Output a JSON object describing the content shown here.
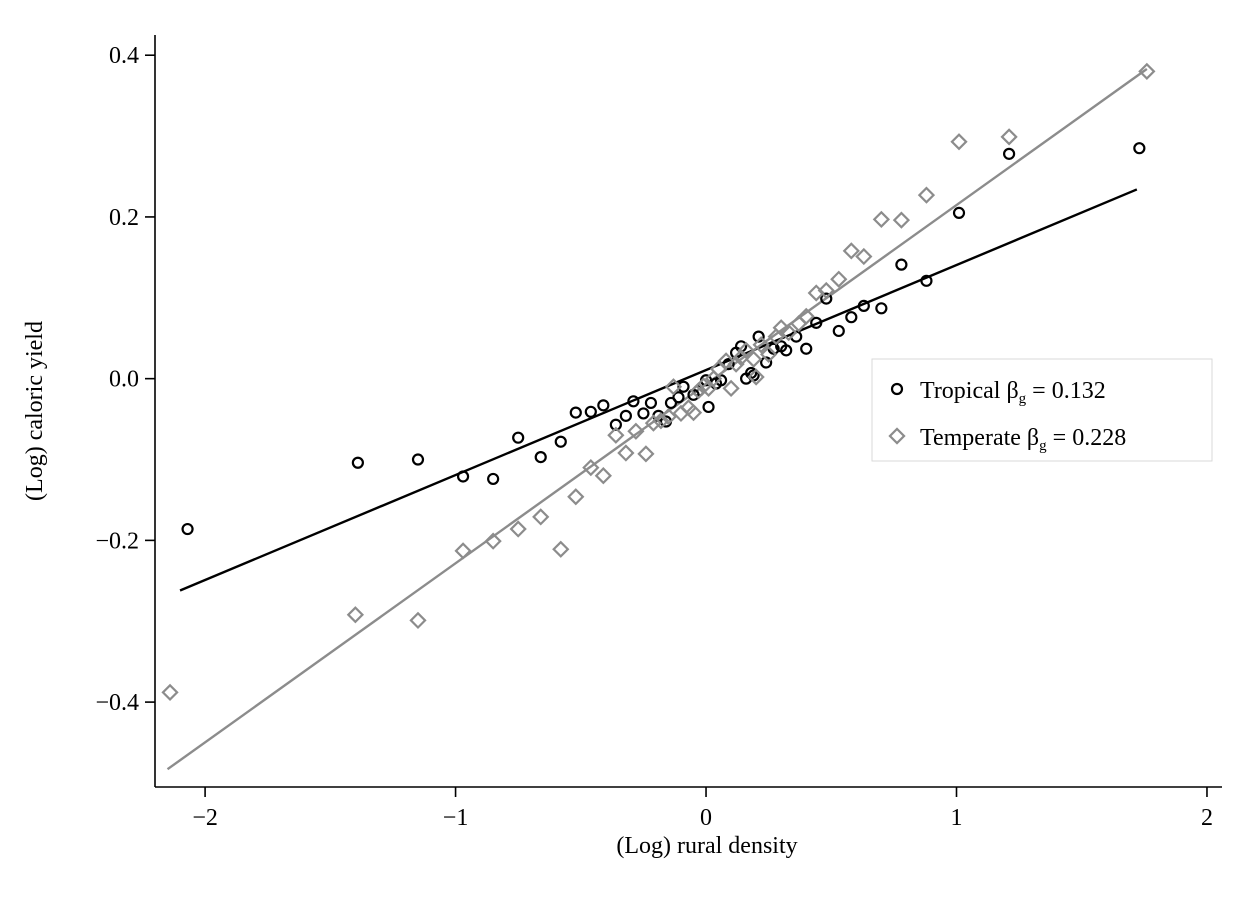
{
  "chart_data": {
    "type": "scatter",
    "xlabel": "(Log) rural density",
    "ylabel": "(Log) caloric yield",
    "xlim": [
      -2.2,
      2.06
    ],
    "ylim": [
      -0.505,
      0.425
    ],
    "xticks": [
      -2,
      -1,
      0,
      1,
      2
    ],
    "yticks": [
      -0.4,
      -0.2,
      0.0,
      0.2,
      0.4
    ],
    "xtick_labels": [
      "−2",
      "−1",
      "0",
      "1",
      "2"
    ],
    "ytick_labels": [
      "−0.4",
      "−0.2",
      "0.0",
      "0.2",
      "0.4"
    ],
    "grid": false,
    "legend_position": "right",
    "series": [
      {
        "name": "Tropical",
        "marker": "circle",
        "color": "#000000",
        "legend_beta": "0.132",
        "fit_line": {
          "x": [
            -2.1,
            1.72
          ],
          "y": [
            -0.262,
            0.234
          ]
        },
        "points": [
          [
            -2.07,
            -0.186
          ],
          [
            -1.39,
            -0.104
          ],
          [
            -1.15,
            -0.1
          ],
          [
            -0.97,
            -0.121
          ],
          [
            -0.85,
            -0.124
          ],
          [
            -0.75,
            -0.073
          ],
          [
            -0.66,
            -0.097
          ],
          [
            -0.58,
            -0.078
          ],
          [
            -0.52,
            -0.042
          ],
          [
            -0.46,
            -0.041
          ],
          [
            -0.41,
            -0.033
          ],
          [
            -0.36,
            -0.057
          ],
          [
            -0.32,
            -0.046
          ],
          [
            -0.29,
            -0.028
          ],
          [
            -0.25,
            -0.043
          ],
          [
            -0.22,
            -0.03
          ],
          [
            -0.19,
            -0.046
          ],
          [
            -0.16,
            -0.053
          ],
          [
            -0.14,
            -0.03
          ],
          [
            -0.11,
            -0.023
          ],
          [
            -0.09,
            -0.01
          ],
          [
            -0.05,
            -0.02
          ],
          [
            -0.03,
            -0.015
          ],
          [
            0.0,
            -0.002
          ],
          [
            0.01,
            -0.035
          ],
          [
            0.04,
            -0.006
          ],
          [
            0.06,
            -0.002
          ],
          [
            0.09,
            0.018
          ],
          [
            0.12,
            0.032
          ],
          [
            0.14,
            0.04
          ],
          [
            0.16,
            0.0
          ],
          [
            0.18,
            0.007
          ],
          [
            0.19,
            0.004
          ],
          [
            0.21,
            0.052
          ],
          [
            0.24,
            0.02
          ],
          [
            0.27,
            0.037
          ],
          [
            0.3,
            0.04
          ],
          [
            0.32,
            0.035
          ],
          [
            0.36,
            0.052
          ],
          [
            0.4,
            0.037
          ],
          [
            0.44,
            0.069
          ],
          [
            0.48,
            0.099
          ],
          [
            0.53,
            0.059
          ],
          [
            0.58,
            0.076
          ],
          [
            0.63,
            0.09
          ],
          [
            0.7,
            0.087
          ],
          [
            0.78,
            0.141
          ],
          [
            0.88,
            0.121
          ],
          [
            1.01,
            0.205
          ],
          [
            1.21,
            0.278
          ],
          [
            1.73,
            0.285
          ]
        ]
      },
      {
        "name": "Temperate",
        "marker": "diamond",
        "color": "#8c8c8c",
        "legend_beta": "0.228",
        "fit_line": {
          "x": [
            -2.15,
            1.76
          ],
          "y": [
            -0.483,
            0.383
          ]
        },
        "points": [
          [
            -2.14,
            -0.388
          ],
          [
            -1.4,
            -0.292
          ],
          [
            -1.15,
            -0.299
          ],
          [
            -0.97,
            -0.213
          ],
          [
            -0.85,
            -0.201
          ],
          [
            -0.75,
            -0.186
          ],
          [
            -0.66,
            -0.171
          ],
          [
            -0.58,
            -0.211
          ],
          [
            -0.52,
            -0.146
          ],
          [
            -0.46,
            -0.11
          ],
          [
            -0.41,
            -0.12
          ],
          [
            -0.36,
            -0.07
          ],
          [
            -0.32,
            -0.092
          ],
          [
            -0.28,
            -0.065
          ],
          [
            -0.24,
            -0.093
          ],
          [
            -0.21,
            -0.055
          ],
          [
            -0.18,
            -0.052
          ],
          [
            -0.15,
            -0.047
          ],
          [
            -0.13,
            -0.01
          ],
          [
            -0.1,
            -0.043
          ],
          [
            -0.07,
            -0.036
          ],
          [
            -0.05,
            -0.042
          ],
          [
            -0.03,
            -0.015
          ],
          [
            -0.01,
            -0.009
          ],
          [
            0.01,
            -0.012
          ],
          [
            0.03,
            0.0
          ],
          [
            0.05,
            0.012
          ],
          [
            0.08,
            0.022
          ],
          [
            0.1,
            -0.012
          ],
          [
            0.12,
            0.018
          ],
          [
            0.14,
            0.026
          ],
          [
            0.16,
            0.035
          ],
          [
            0.19,
            0.024
          ],
          [
            0.2,
            0.002
          ],
          [
            0.22,
            0.042
          ],
          [
            0.25,
            0.03
          ],
          [
            0.28,
            0.052
          ],
          [
            0.3,
            0.063
          ],
          [
            0.33,
            0.057
          ],
          [
            0.37,
            0.068
          ],
          [
            0.4,
            0.077
          ],
          [
            0.44,
            0.106
          ],
          [
            0.48,
            0.109
          ],
          [
            0.53,
            0.123
          ],
          [
            0.58,
            0.158
          ],
          [
            0.63,
            0.151
          ],
          [
            0.7,
            0.197
          ],
          [
            0.78,
            0.196
          ],
          [
            0.88,
            0.227
          ],
          [
            1.01,
            0.293
          ],
          [
            1.21,
            0.299
          ],
          [
            1.76,
            0.38
          ]
        ]
      }
    ]
  }
}
